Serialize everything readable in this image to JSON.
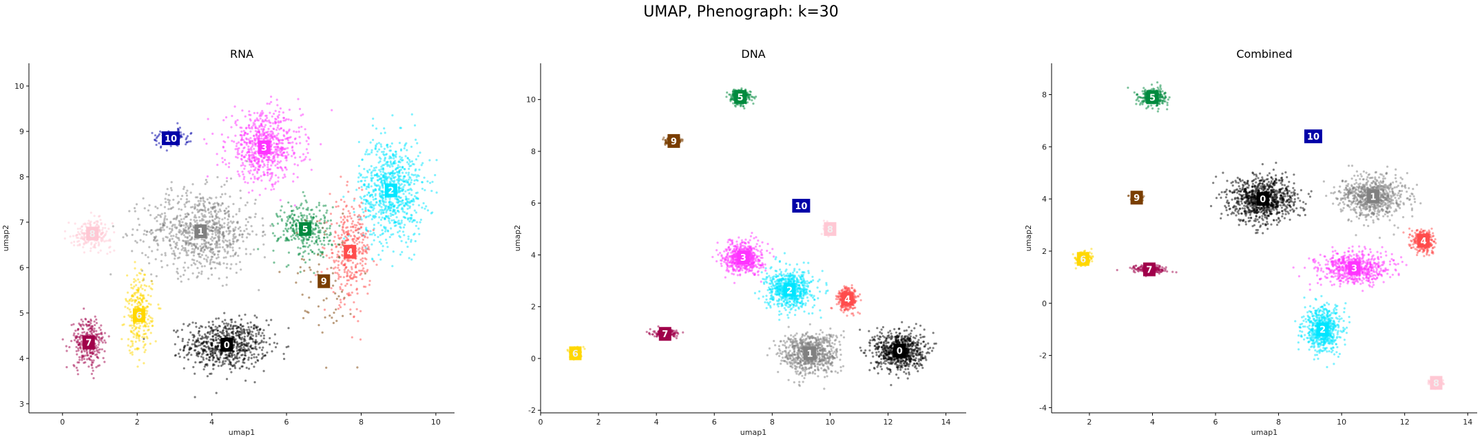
{
  "figure": {
    "title": "UMAP, Phenograph: k=30"
  },
  "chart_data": [
    {
      "type": "scatter",
      "title": "RNA",
      "xlabel": "umap1",
      "ylabel": "umap2",
      "xlim": [
        -0.9,
        10.5
      ],
      "ylim": [
        2.8,
        10.5
      ],
      "xticks": [
        0,
        2,
        4,
        6,
        8,
        10
      ],
      "yticks": [
        3,
        4,
        5,
        6,
        7,
        8,
        9,
        10
      ],
      "grid": false,
      "clusters": [
        {
          "label": "0",
          "x": 4.4,
          "y": 4.3,
          "color": "#000000",
          "spread": [
            1.1,
            0.55
          ],
          "n": 700
        },
        {
          "label": "1",
          "x": 3.7,
          "y": 6.8,
          "color": "#808080",
          "spread": [
            1.5,
            0.9
          ],
          "n": 800
        },
        {
          "label": "2",
          "x": 8.8,
          "y": 7.7,
          "color": "#00e5ff",
          "spread": [
            0.85,
            1.15
          ],
          "n": 800
        },
        {
          "label": "3",
          "x": 5.4,
          "y": 8.65,
          "color": "#ff33ff",
          "spread": [
            1.0,
            0.75
          ],
          "n": 700
        },
        {
          "label": "4",
          "x": 7.7,
          "y": 6.35,
          "color": "#ff4c4c",
          "spread": [
            0.55,
            1.1
          ],
          "n": 350
        },
        {
          "label": "5",
          "x": 6.5,
          "y": 6.85,
          "color": "#008a3e",
          "spread": [
            0.7,
            0.6
          ],
          "n": 320
        },
        {
          "label": "6",
          "x": 2.05,
          "y": 4.95,
          "color": "#ffd700",
          "spread": [
            0.35,
            0.85
          ],
          "n": 280
        },
        {
          "label": "7",
          "x": 0.7,
          "y": 4.35,
          "color": "#a0004a",
          "spread": [
            0.45,
            0.55
          ],
          "n": 280
        },
        {
          "label": "8",
          "x": 0.8,
          "y": 6.75,
          "color": "#ffc8d4",
          "spread": [
            0.5,
            0.3
          ],
          "n": 220
        },
        {
          "label": "9",
          "x": 7.0,
          "y": 5.7,
          "color": "#7a3e00",
          "spread": [
            0.9,
            1.4
          ],
          "n": 60
        },
        {
          "label": "10",
          "x": 2.9,
          "y": 8.85,
          "color": "#0000a8",
          "spread": [
            0.5,
            0.2
          ],
          "n": 100
        }
      ]
    },
    {
      "type": "scatter",
      "title": "DNA",
      "xlabel": "umap1",
      "ylabel": "umap2",
      "xlim": [
        0,
        14.7
      ],
      "ylim": [
        -2.1,
        11.4
      ],
      "xticks": [
        0,
        2,
        4,
        6,
        8,
        10,
        12,
        14
      ],
      "yticks": [
        -2,
        0,
        2,
        4,
        6,
        8,
        10
      ],
      "grid": false,
      "clusters": [
        {
          "label": "0",
          "x": 12.4,
          "y": 0.3,
          "color": "#000000",
          "spread": [
            0.85,
            0.75
          ],
          "n": 750
        },
        {
          "label": "1",
          "x": 9.3,
          "y": 0.2,
          "color": "#808080",
          "spread": [
            1.0,
            0.8
          ],
          "n": 750
        },
        {
          "label": "2",
          "x": 8.6,
          "y": 2.65,
          "color": "#00e5ff",
          "spread": [
            0.8,
            0.75
          ],
          "n": 650
        },
        {
          "label": "3",
          "x": 7.0,
          "y": 3.9,
          "color": "#ff33ff",
          "spread": [
            0.65,
            0.6
          ],
          "n": 600
        },
        {
          "label": "4",
          "x": 10.6,
          "y": 2.3,
          "color": "#ff4c4c",
          "spread": [
            0.35,
            0.45
          ],
          "n": 300
        },
        {
          "label": "5",
          "x": 6.9,
          "y": 10.1,
          "color": "#008a3e",
          "spread": [
            0.35,
            0.3
          ],
          "n": 260
        },
        {
          "label": "6",
          "x": 1.2,
          "y": 0.2,
          "color": "#ffd700",
          "spread": [
            0.2,
            0.2
          ],
          "n": 220
        },
        {
          "label": "7",
          "x": 4.3,
          "y": 0.95,
          "color": "#a0004a",
          "spread": [
            0.4,
            0.15
          ],
          "n": 200
        },
        {
          "label": "8",
          "x": 10.0,
          "y": 5.0,
          "color": "#ffc8d4",
          "spread": [
            0.2,
            0.2
          ],
          "n": 120
        },
        {
          "label": "9",
          "x": 4.6,
          "y": 8.4,
          "color": "#7a3e00",
          "spread": [
            0.3,
            0.15
          ],
          "n": 120
        },
        {
          "label": "10",
          "x": 9.0,
          "y": 5.9,
          "color": "#0000a8",
          "spread": [
            0.2,
            0.15
          ],
          "n": 50
        }
      ]
    },
    {
      "type": "scatter",
      "title": "Combined",
      "xlabel": "umap1",
      "ylabel": "umap2",
      "xlim": [
        0.8,
        14.3
      ],
      "ylim": [
        -4.2,
        9.2
      ],
      "xticks": [
        2,
        4,
        6,
        8,
        10,
        12,
        14
      ],
      "yticks": [
        -4,
        -2,
        0,
        2,
        4,
        6,
        8
      ],
      "grid": false,
      "clusters": [
        {
          "label": "0",
          "x": 7.5,
          "y": 4.0,
          "color": "#000000",
          "spread": [
            1.05,
            0.85
          ],
          "n": 900
        },
        {
          "label": "1",
          "x": 11.0,
          "y": 4.1,
          "color": "#808080",
          "spread": [
            1.0,
            0.8
          ],
          "n": 750
        },
        {
          "label": "2",
          "x": 9.4,
          "y": -1.0,
          "color": "#00e5ff",
          "spread": [
            0.6,
            0.85
          ],
          "n": 600
        },
        {
          "label": "3",
          "x": 10.4,
          "y": 1.35,
          "color": "#ff33ff",
          "spread": [
            1.1,
            0.6
          ],
          "n": 650
        },
        {
          "label": "4",
          "x": 12.6,
          "y": 2.4,
          "color": "#ff4c4c",
          "spread": [
            0.35,
            0.45
          ],
          "n": 280
        },
        {
          "label": "5",
          "x": 4.0,
          "y": 7.9,
          "color": "#008a3e",
          "spread": [
            0.45,
            0.35
          ],
          "n": 260
        },
        {
          "label": "6",
          "x": 1.8,
          "y": 1.7,
          "color": "#ffd700",
          "spread": [
            0.25,
            0.25
          ],
          "n": 220
        },
        {
          "label": "7",
          "x": 3.9,
          "y": 1.3,
          "color": "#a0004a",
          "spread": [
            0.55,
            0.15
          ],
          "n": 200
        },
        {
          "label": "8",
          "x": 13.0,
          "y": -3.05,
          "color": "#ffc8d4",
          "spread": [
            0.2,
            0.15
          ],
          "n": 120
        },
        {
          "label": "9",
          "x": 3.5,
          "y": 4.05,
          "color": "#7a3e00",
          "spread": [
            0.2,
            0.15
          ],
          "n": 110
        },
        {
          "label": "10",
          "x": 9.1,
          "y": 6.4,
          "color": "#0000a8",
          "spread": [
            0.2,
            0.1
          ],
          "n": 40
        }
      ]
    }
  ]
}
